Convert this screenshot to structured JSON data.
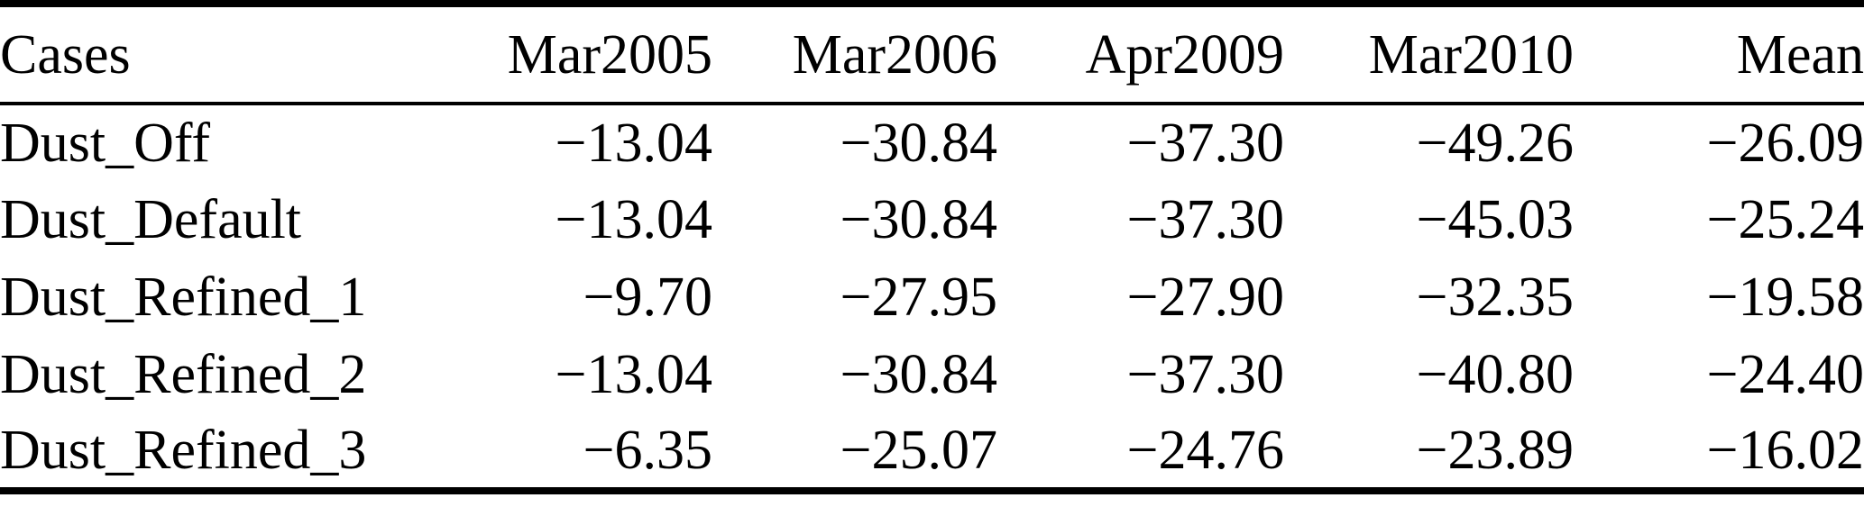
{
  "chart_data": {
    "type": "table",
    "columns": [
      "Cases",
      "Mar2005",
      "Mar2006",
      "Apr2009",
      "Mar2010",
      "Mean"
    ],
    "rows": [
      {
        "label": "Dust_Off",
        "cells": [
          "−13.04",
          "−30.84",
          "−37.30",
          "−49.26",
          "−26.09"
        ],
        "values": [
          -13.04,
          -30.84,
          -37.3,
          -49.26,
          -26.09
        ]
      },
      {
        "label": "Dust_Default",
        "cells": [
          "−13.04",
          "−30.84",
          "−37.30",
          "−45.03",
          "−25.24"
        ],
        "values": [
          -13.04,
          -30.84,
          -37.3,
          -45.03,
          -25.24
        ]
      },
      {
        "label": "Dust_Refined_1",
        "cells": [
          "−9.70",
          "−27.95",
          "−27.90",
          "−32.35",
          "−19.58"
        ],
        "values": [
          -9.7,
          -27.95,
          -27.9,
          -32.35,
          -19.58
        ]
      },
      {
        "label": "Dust_Refined_2",
        "cells": [
          "−13.04",
          "−30.84",
          "−37.30",
          "−40.80",
          "−24.40"
        ],
        "values": [
          -13.04,
          -30.84,
          -37.3,
          -40.8,
          -24.4
        ]
      },
      {
        "label": "Dust_Refined_3",
        "cells": [
          "−6.35",
          "−25.07",
          "−24.76",
          "−23.89",
          "−16.02"
        ],
        "values": [
          -6.35,
          -25.07,
          -24.76,
          -23.89,
          -16.02
        ]
      }
    ]
  },
  "colors": {
    "text": "#000000",
    "background": "#ffffff",
    "rule": "#000000"
  }
}
